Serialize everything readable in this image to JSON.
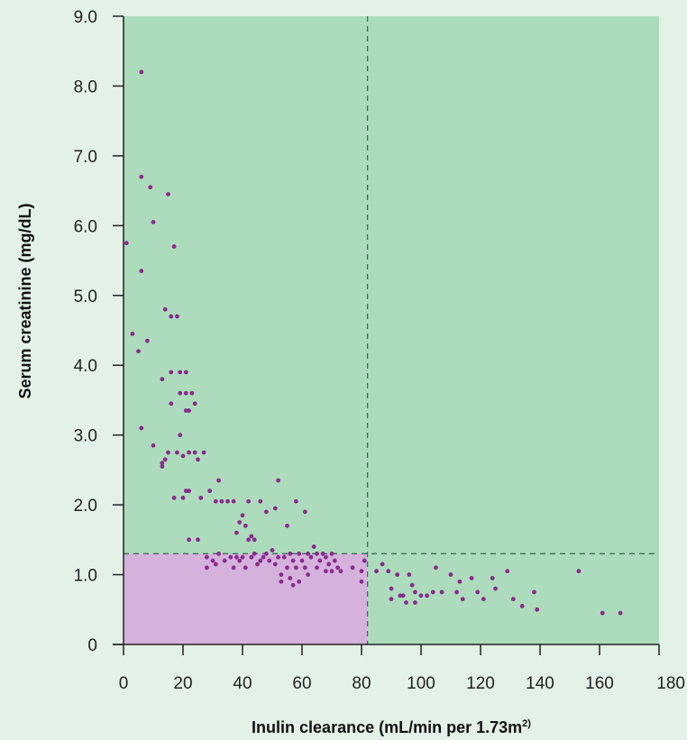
{
  "chart_data": {
    "type": "scatter",
    "title": "",
    "xlabel": "Inulin clearance (mL/min per 1.73m",
    "xlabel_sup": "2)",
    "ylabel": "Serum creatinine (mg/dL)",
    "xlim": [
      0,
      180
    ],
    "ylim": [
      0,
      9
    ],
    "x_ticks": [
      0,
      20,
      40,
      60,
      80,
      100,
      120,
      140,
      160,
      180
    ],
    "x_tick_labels": [
      "0",
      "20",
      "40",
      "60",
      "80",
      "100",
      "120",
      "140",
      "160",
      "180"
    ],
    "y_ticks": [
      0,
      1,
      2,
      3,
      4,
      5,
      6,
      7,
      8,
      9
    ],
    "y_tick_labels": [
      "0",
      "1.0",
      "2.0",
      "3.0",
      "4.0",
      "5.0",
      "6.0",
      "7.0",
      "8.0",
      "9.0"
    ],
    "grid": false,
    "reference_lines": {
      "x": 82,
      "y": 1.3
    },
    "colors": {
      "plot_background": "#acdcbc",
      "page_background": "#e3f1e6",
      "low_region": "#d4b2dc",
      "points": "#8a2a8e",
      "reference_line": "#3d6b56",
      "axis": "#222222"
    },
    "points": [
      [
        1,
        5.75
      ],
      [
        3,
        4.45
      ],
      [
        5,
        4.2
      ],
      [
        6,
        8.2
      ],
      [
        6,
        6.7
      ],
      [
        6,
        5.35
      ],
      [
        6,
        3.1
      ],
      [
        8,
        4.35
      ],
      [
        9,
        6.55
      ],
      [
        10,
        6.05
      ],
      [
        10,
        2.85
      ],
      [
        13,
        3.8
      ],
      [
        13,
        2.6
      ],
      [
        13,
        2.55
      ],
      [
        14,
        4.8
      ],
      [
        14,
        2.65
      ],
      [
        15,
        6.45
      ],
      [
        15,
        2.75
      ],
      [
        16,
        4.7
      ],
      [
        16,
        3.9
      ],
      [
        16,
        3.45
      ],
      [
        17,
        5.7
      ],
      [
        17,
        2.1
      ],
      [
        18,
        4.7
      ],
      [
        18,
        2.75
      ],
      [
        19,
        3.9
      ],
      [
        19,
        3.6
      ],
      [
        19,
        3.0
      ],
      [
        20,
        2.1
      ],
      [
        20,
        2.7
      ],
      [
        21,
        3.9
      ],
      [
        21,
        3.6
      ],
      [
        21,
        3.35
      ],
      [
        21,
        2.2
      ],
      [
        22,
        3.35
      ],
      [
        22,
        2.75
      ],
      [
        22,
        2.2
      ],
      [
        22,
        1.5
      ],
      [
        23,
        3.6
      ],
      [
        24,
        3.45
      ],
      [
        24,
        2.75
      ],
      [
        25,
        2.65
      ],
      [
        25,
        1.5
      ],
      [
        26,
        2.1
      ],
      [
        27,
        2.75
      ],
      [
        28,
        1.25
      ],
      [
        28,
        1.1
      ],
      [
        29,
        2.2
      ],
      [
        30,
        1.2
      ],
      [
        31,
        2.05
      ],
      [
        31,
        1.15
      ],
      [
        32,
        2.35
      ],
      [
        32,
        1.3
      ],
      [
        33,
        2.05
      ],
      [
        34,
        1.2
      ],
      [
        35,
        2.05
      ],
      [
        36,
        1.25
      ],
      [
        37,
        2.05
      ],
      [
        37,
        1.1
      ],
      [
        38,
        1.6
      ],
      [
        38,
        1.25
      ],
      [
        39,
        1.75
      ],
      [
        39,
        1.2
      ],
      [
        40,
        1.85
      ],
      [
        40,
        1.25
      ],
      [
        41,
        1.7
      ],
      [
        41,
        1.1
      ],
      [
        42,
        2.05
      ],
      [
        42,
        1.5
      ],
      [
        43,
        1.55
      ],
      [
        43,
        1.25
      ],
      [
        44,
        1.5
      ],
      [
        44,
        1.3
      ],
      [
        45,
        1.15
      ],
      [
        46,
        2.05
      ],
      [
        46,
        1.2
      ],
      [
        47,
        1.25
      ],
      [
        48,
        1.9
      ],
      [
        48,
        1.3
      ],
      [
        49,
        1.2
      ],
      [
        50,
        1.35
      ],
      [
        51,
        1.95
      ],
      [
        51,
        1.15
      ],
      [
        52,
        2.35
      ],
      [
        52,
        1.25
      ],
      [
        53,
        1.0
      ],
      [
        53,
        0.9
      ],
      [
        54,
        1.25
      ],
      [
        55,
        1.7
      ],
      [
        55,
        1.1
      ],
      [
        56,
        1.3
      ],
      [
        56,
        0.95
      ],
      [
        57,
        1.2
      ],
      [
        57,
        0.85
      ],
      [
        58,
        2.05
      ],
      [
        58,
        1.1
      ],
      [
        59,
        1.3
      ],
      [
        59,
        0.9
      ],
      [
        60,
        1.2
      ],
      [
        61,
        1.9
      ],
      [
        61,
        1.1
      ],
      [
        62,
        1.3
      ],
      [
        62,
        1.0
      ],
      [
        63,
        1.25
      ],
      [
        64,
        1.4
      ],
      [
        65,
        1.3
      ],
      [
        65,
        1.1
      ],
      [
        66,
        1.2
      ],
      [
        67,
        1.3
      ],
      [
        68,
        1.25
      ],
      [
        68,
        1.05
      ],
      [
        69,
        1.15
      ],
      [
        70,
        1.3
      ],
      [
        70,
        1.05
      ],
      [
        71,
        1.2
      ],
      [
        72,
        1.1
      ],
      [
        73,
        1.05
      ],
      [
        77,
        1.1
      ],
      [
        80,
        1.05
      ],
      [
        80,
        0.9
      ],
      [
        81,
        1.2
      ],
      [
        85,
        1.05
      ],
      [
        87,
        1.15
      ],
      [
        89,
        1.05
      ],
      [
        90,
        0.8
      ],
      [
        90,
        0.65
      ],
      [
        92,
        1.0
      ],
      [
        93,
        0.7
      ],
      [
        94,
        0.7
      ],
      [
        95,
        0.6
      ],
      [
        96,
        1.0
      ],
      [
        97,
        0.85
      ],
      [
        98,
        0.75
      ],
      [
        98,
        0.6
      ],
      [
        100,
        0.7
      ],
      [
        102,
        0.7
      ],
      [
        104,
        0.75
      ],
      [
        105,
        1.1
      ],
      [
        107,
        0.75
      ],
      [
        110,
        1.0
      ],
      [
        112,
        0.75
      ],
      [
        113,
        0.9
      ],
      [
        114,
        0.65
      ],
      [
        117,
        0.95
      ],
      [
        119,
        0.75
      ],
      [
        121,
        0.65
      ],
      [
        124,
        0.95
      ],
      [
        125,
        0.8
      ],
      [
        129,
        1.05
      ],
      [
        131,
        0.65
      ],
      [
        134,
        0.55
      ],
      [
        138,
        0.75
      ],
      [
        139,
        0.5
      ],
      [
        153,
        1.05
      ],
      [
        161,
        0.45
      ],
      [
        167,
        0.45
      ]
    ]
  }
}
